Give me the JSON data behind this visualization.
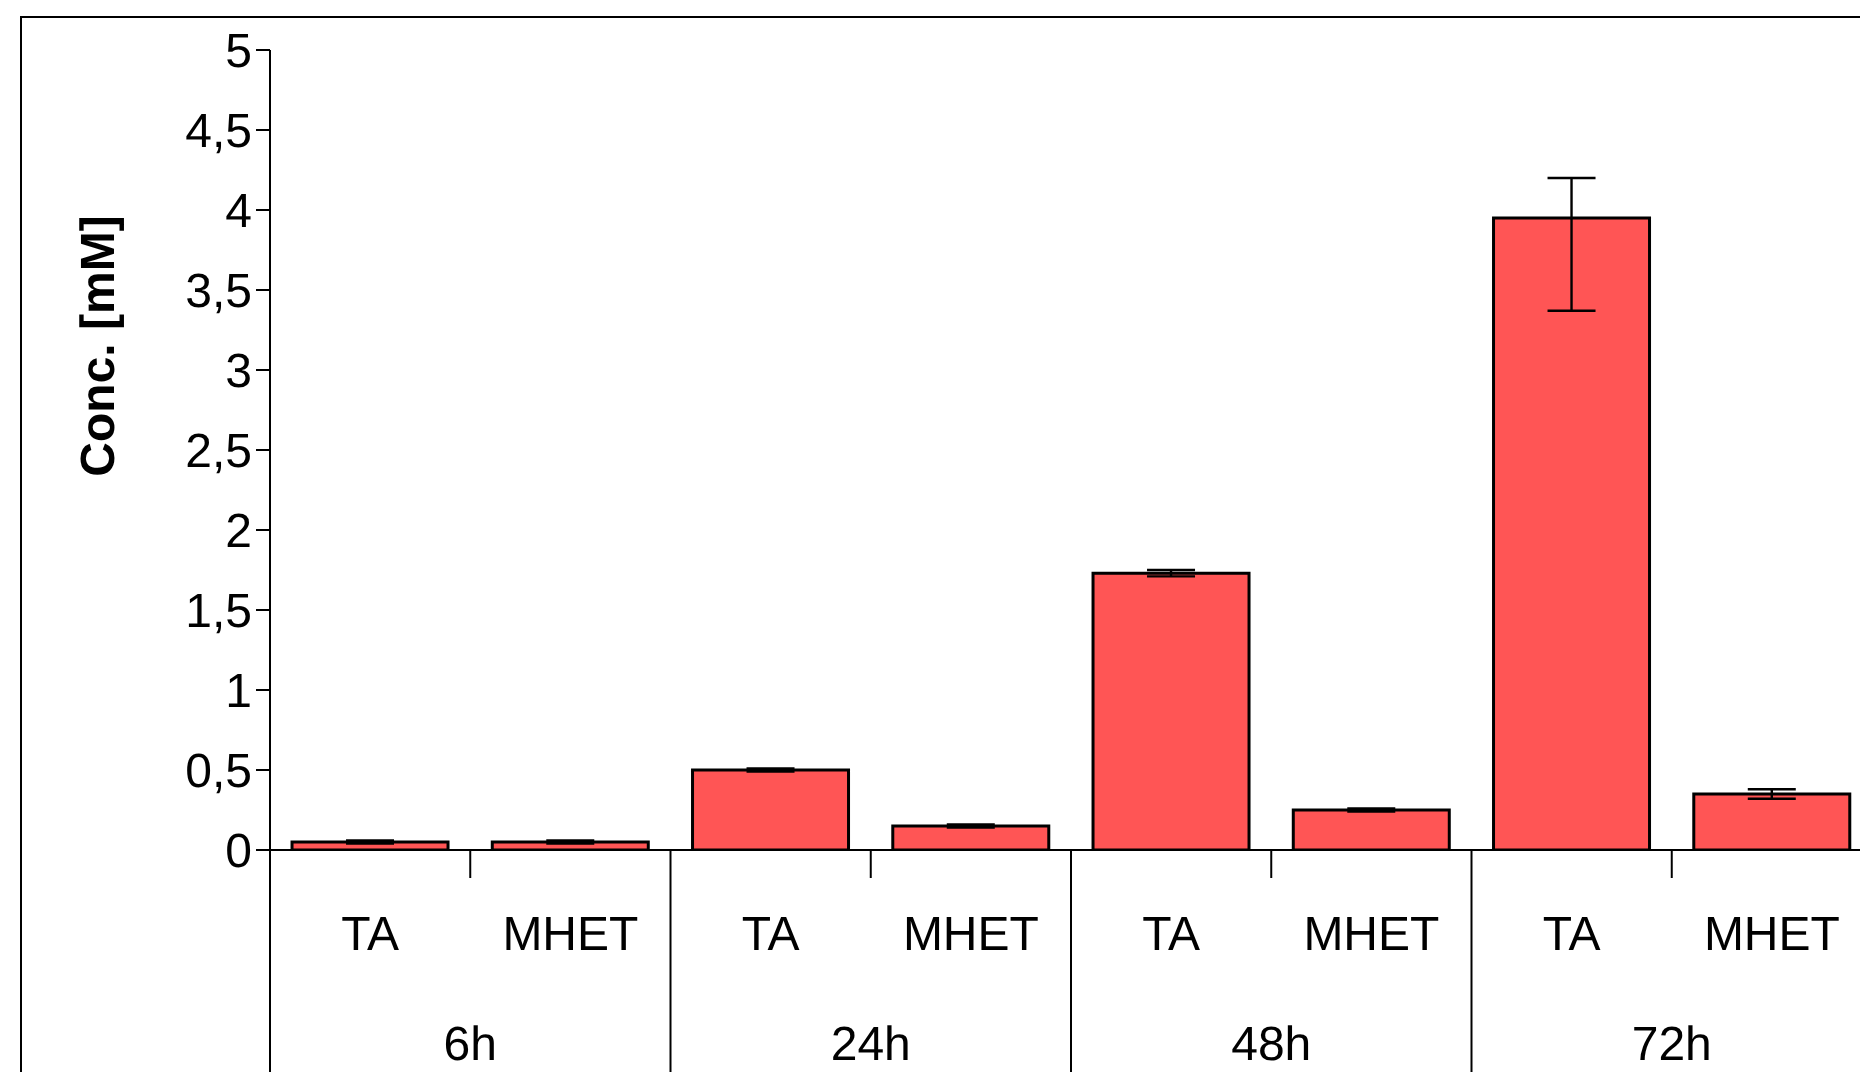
{
  "chart_data": {
    "type": "bar",
    "ylabel": "Conc.  [mM]",
    "categories": [
      "TA",
      "MHET",
      "TA",
      "MHET",
      "TA",
      "MHET",
      "TA",
      "MHET"
    ],
    "annotations": [
      "6h",
      "24h",
      "48h",
      "72h"
    ],
    "values": [
      0.05,
      0.05,
      0.5,
      0.15,
      1.73,
      0.25,
      3.95,
      0.35
    ],
    "errors": [
      0.01,
      0.01,
      0.01,
      0.01,
      0.02,
      0.01,
      [
        3.37,
        4.2
      ],
      0.03
    ],
    "color": "#ff5555",
    "ylim": [
      0,
      5
    ],
    "yticks": [
      0,
      {
        "value": 0.5,
        "label": "0,5"
      },
      1,
      {
        "value": 1.5,
        "label": "1,5"
      },
      2,
      {
        "value": 2.5,
        "label": "2,5"
      },
      3,
      {
        "value": 3.5,
        "label": "3,5"
      },
      4,
      {
        "value": 4.5,
        "label": "4,5"
      },
      5
    ],
    "grid": false,
    "legend": false
  }
}
